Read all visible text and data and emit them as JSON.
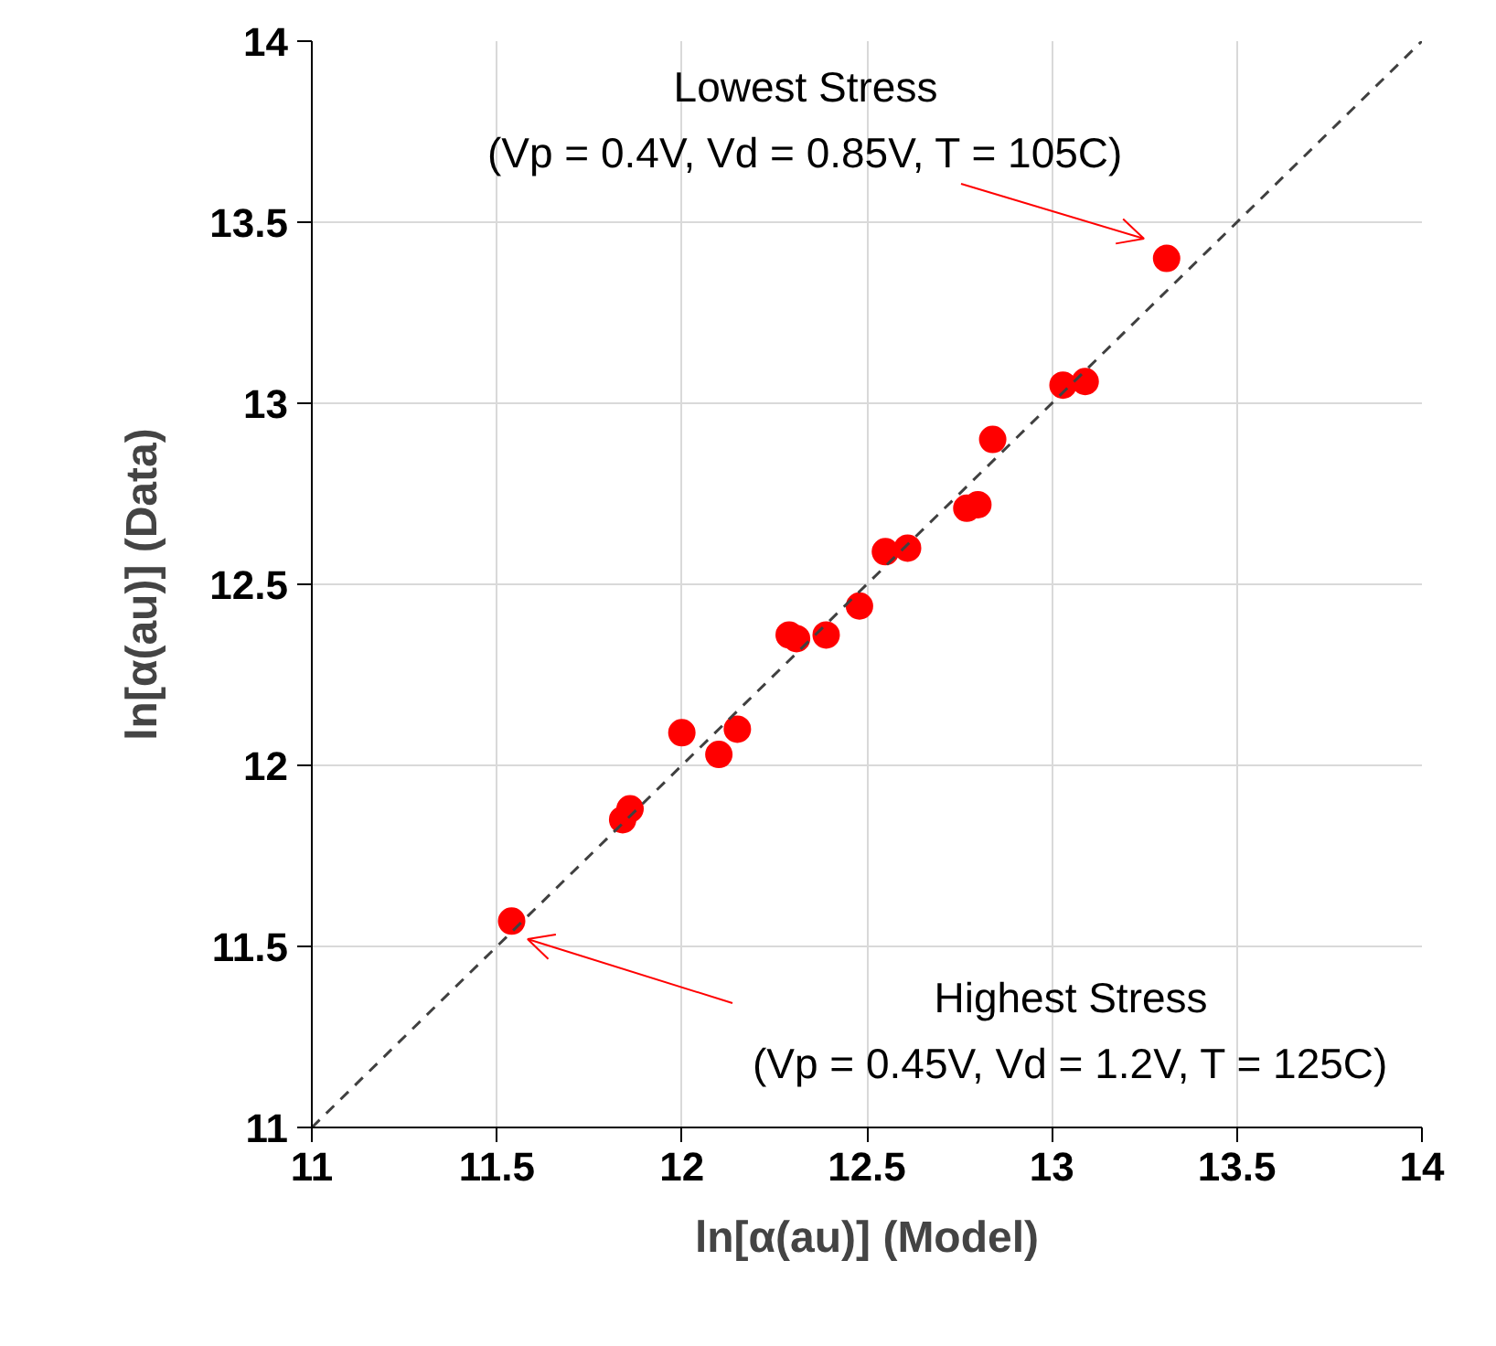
{
  "chart_data": {
    "type": "scatter",
    "xlabel": "ln[α(au)] (Model)",
    "ylabel": "ln[α(au)] (Data)",
    "xlim": [
      11,
      14
    ],
    "ylim": [
      11,
      14
    ],
    "xticks": [
      11,
      11.5,
      12,
      12.5,
      13,
      13.5,
      14
    ],
    "yticks": [
      11,
      11.5,
      12,
      12.5,
      13,
      13.5,
      14
    ],
    "grid": true,
    "series": [
      {
        "color": "#ff0000",
        "marker": "circle",
        "x": [
          11.54,
          11.84,
          11.86,
          12.0,
          12.1,
          12.15,
          12.29,
          12.31,
          12.39,
          12.48,
          12.55,
          12.61,
          12.77,
          12.8,
          12.84,
          13.03,
          13.09,
          13.31
        ],
        "values": [
          11.57,
          11.85,
          11.88,
          12.09,
          12.03,
          12.1,
          12.36,
          12.35,
          12.36,
          12.44,
          12.59,
          12.6,
          12.71,
          12.72,
          12.9,
          13.05,
          13.06,
          13.4
        ]
      },
      {
        "type": "line",
        "color": "#404040",
        "line_style": "dashed",
        "x": [
          11,
          14
        ],
        "values": [
          11,
          14
        ]
      }
    ],
    "annotations": [
      "Lowest Stress\n(Vp = 0.4V, Vd = 0.85V, T = 105C)",
      "Highest Stress\n(Vp = 0.45V, Vd = 1.2V, T = 125C)"
    ]
  }
}
